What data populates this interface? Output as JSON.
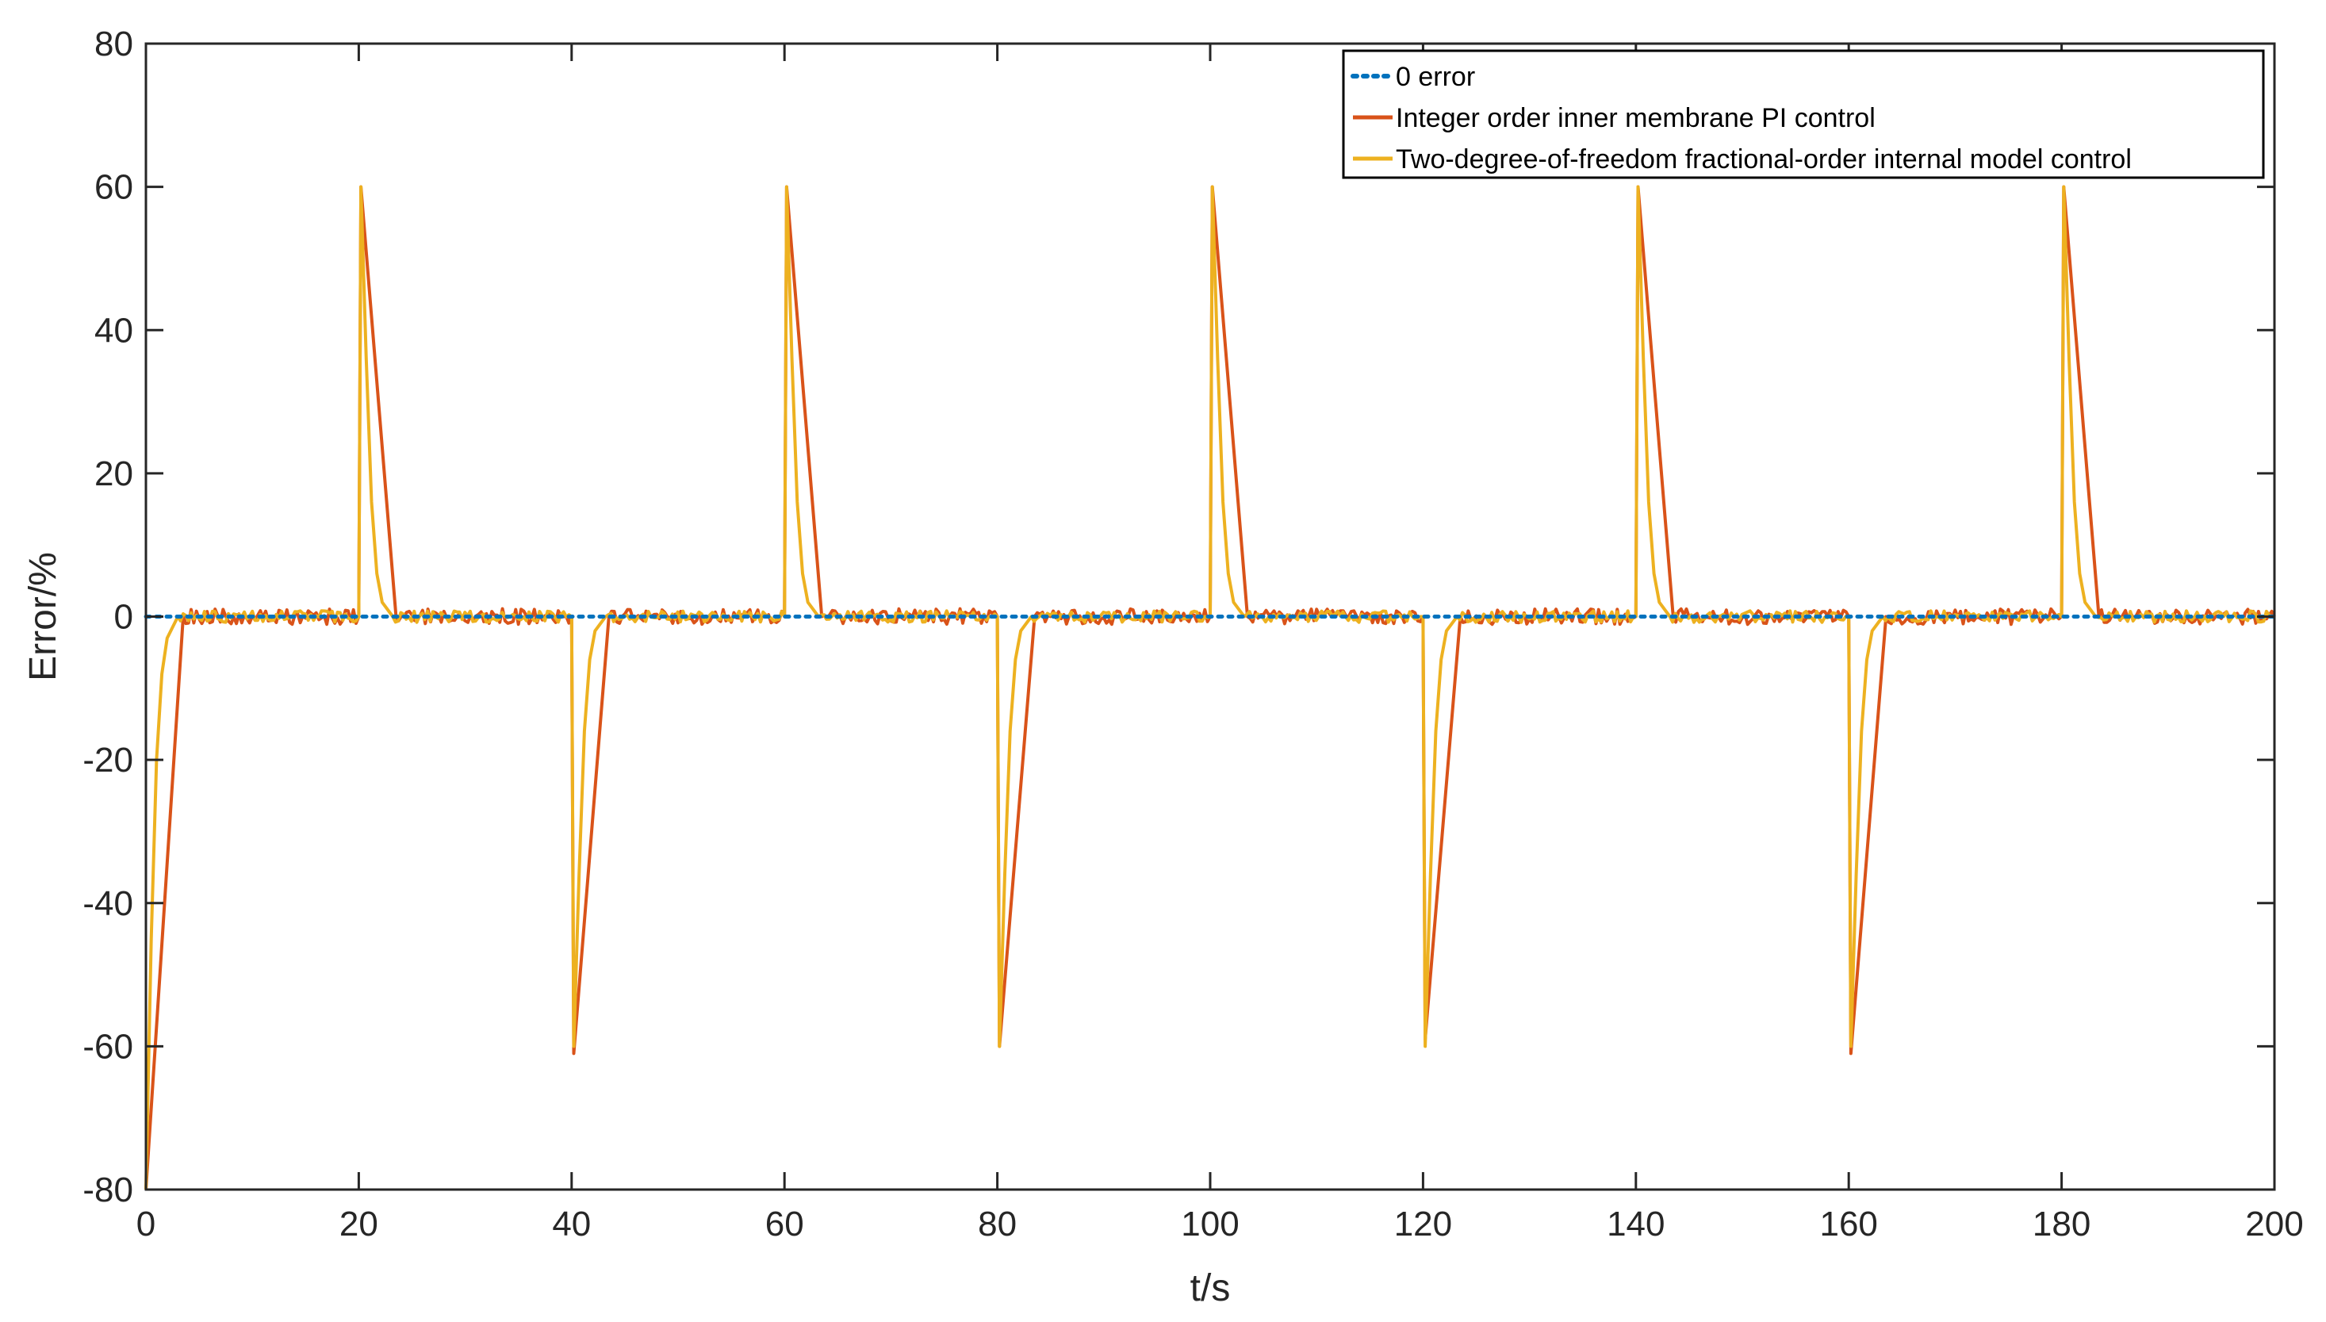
{
  "chart_data": {
    "type": "line",
    "xlabel": "t/s",
    "ylabel": "Error/%",
    "xlim": [
      0,
      200
    ],
    "ylim": [
      -80,
      80
    ],
    "xticks": [
      0,
      20,
      40,
      60,
      80,
      100,
      120,
      140,
      160,
      180,
      200
    ],
    "yticks": [
      80,
      60,
      40,
      20,
      0,
      -20,
      -40,
      -60,
      -80
    ],
    "xtick_labels": [
      "0",
      "20",
      "40",
      "60",
      "80",
      "100",
      "120",
      "140",
      "160",
      "180",
      "200"
    ],
    "ytick_labels": [
      "80",
      "60",
      "40",
      "20",
      "0",
      "-20",
      "-40",
      "-60",
      "-80"
    ],
    "grid": false,
    "legend_position": "top-right",
    "series": [
      {
        "name": "0 error",
        "color": "#0072BD",
        "style": "dotted",
        "x": [
          0,
          200
        ],
        "y": [
          0,
          0
        ]
      },
      {
        "name": "Integer order inner membrane PI control",
        "color": "#D95319",
        "style": "solid",
        "x": [
          0,
          3.5,
          20,
          20.2,
          23.5,
          40,
          40.2,
          43.5,
          60,
          60.2,
          63.5,
          80,
          80.2,
          83.5,
          100,
          100.2,
          103.5,
          120,
          120.2,
          123.5,
          140,
          140.2,
          143.5,
          160,
          160.2,
          163.5,
          180,
          180.2,
          183.5,
          200
        ],
        "y": [
          -80,
          0,
          0,
          60,
          0,
          0,
          -61,
          0,
          0,
          60,
          0,
          0,
          -60,
          0,
          0,
          60,
          0,
          0,
          -59,
          0,
          0,
          60,
          0,
          0,
          -61,
          0,
          0,
          60,
          0,
          0
        ]
      },
      {
        "name": "Two-degree-of-freedom fractional-order internal model control",
        "color": "#EDB120",
        "style": "solid",
        "x": [
          0,
          0.5,
          1,
          1.5,
          2,
          3,
          20,
          20.2,
          20.7,
          21.2,
          21.7,
          22.2,
          23.2,
          40,
          40.2,
          40.7,
          41.2,
          41.7,
          42.2,
          43.2,
          60,
          60.2,
          60.7,
          61.2,
          61.7,
          62.2,
          63.2,
          80,
          80.2,
          80.7,
          81.2,
          81.7,
          82.2,
          83.2,
          100,
          100.2,
          100.7,
          101.2,
          101.7,
          102.2,
          103.2,
          120,
          120.2,
          120.7,
          121.2,
          121.7,
          122.2,
          123.2,
          140,
          140.2,
          140.7,
          141.2,
          141.7,
          142.2,
          143.2,
          160,
          160.2,
          160.7,
          161.2,
          161.7,
          162.2,
          163.2,
          180,
          180.2,
          180.7,
          181.2,
          181.7,
          182.2,
          183.2,
          200
        ],
        "y": [
          -80,
          -45,
          -20,
          -8,
          -3,
          0,
          0,
          60,
          36,
          16,
          6,
          2,
          0,
          0,
          -60,
          -36,
          -16,
          -6,
          -2,
          0,
          0,
          60,
          36,
          16,
          6,
          2,
          0,
          0,
          -60,
          -36,
          -16,
          -6,
          -2,
          0,
          0,
          60,
          36,
          16,
          6,
          2,
          0,
          0,
          -60,
          -36,
          -16,
          -6,
          -2,
          0,
          0,
          60,
          36,
          16,
          6,
          2,
          0,
          0,
          -60,
          -36,
          -16,
          -6,
          -2,
          0,
          0,
          60,
          36,
          16,
          6,
          2,
          0,
          0
        ]
      }
    ]
  }
}
